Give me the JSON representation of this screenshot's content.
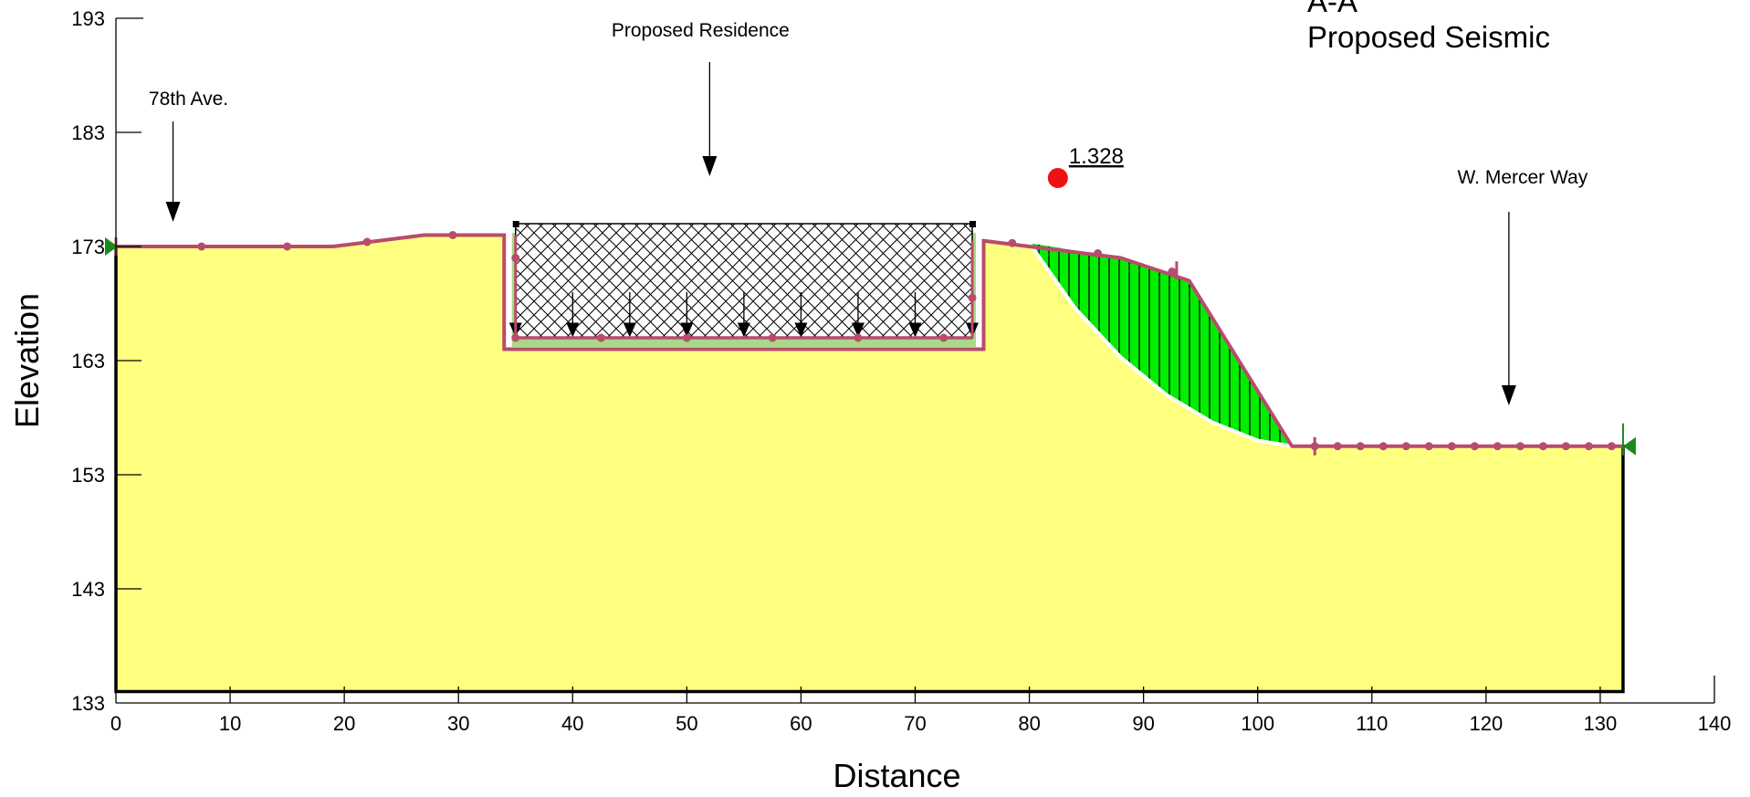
{
  "title": {
    "line1": "A-A",
    "line2": "Proposed Seismic"
  },
  "chart_data": {
    "type": "slope-stability-section",
    "xlabel": "Distance",
    "ylabel": "Elevation",
    "xlim": [
      0,
      140
    ],
    "ylim": [
      133,
      193
    ],
    "x_ticks": [
      0,
      10,
      20,
      30,
      40,
      50,
      60,
      70,
      80,
      90,
      100,
      110,
      120,
      130,
      140
    ],
    "y_ticks": [
      133,
      143,
      153,
      163,
      173,
      183,
      193
    ],
    "ground_surface": [
      [
        0,
        173
      ],
      [
        19,
        173
      ],
      [
        27,
        174
      ],
      [
        34,
        174
      ],
      [
        34,
        164
      ],
      [
        76,
        164
      ],
      [
        76,
        173.5
      ],
      [
        80,
        173
      ],
      [
        88,
        172
      ],
      [
        94,
        170
      ],
      [
        103,
        155.5
      ],
      [
        132,
        155.5
      ]
    ],
    "model_bottom": 134,
    "structure": {
      "label": "Proposed Residence",
      "x_range": [
        35,
        75
      ],
      "y_range": [
        165,
        175
      ]
    },
    "critical_slip_surface": {
      "factor_of_safety": "1.328",
      "center": [
        82.5,
        179
      ],
      "points": [
        [
          80,
          173.3
        ],
        [
          84,
          167.6
        ],
        [
          88,
          163.3
        ],
        [
          92,
          160.0
        ],
        [
          96,
          157.6
        ],
        [
          100,
          156.0
        ],
        [
          103,
          155.5
        ]
      ]
    },
    "annotations": [
      {
        "text": "78th Ave.",
        "x": 5,
        "y": 175
      },
      {
        "text": "Proposed Residence",
        "x": 52,
        "y": 179
      },
      {
        "text": "W. Mercer Way",
        "x": 122,
        "y": 159
      }
    ],
    "colors": {
      "soil": "#ffff80",
      "slide_mass": "#00ee00",
      "surface_line": "#b84c6c",
      "fos_marker": "#ee1111",
      "boundary_marker": "#1a8a1a"
    }
  }
}
